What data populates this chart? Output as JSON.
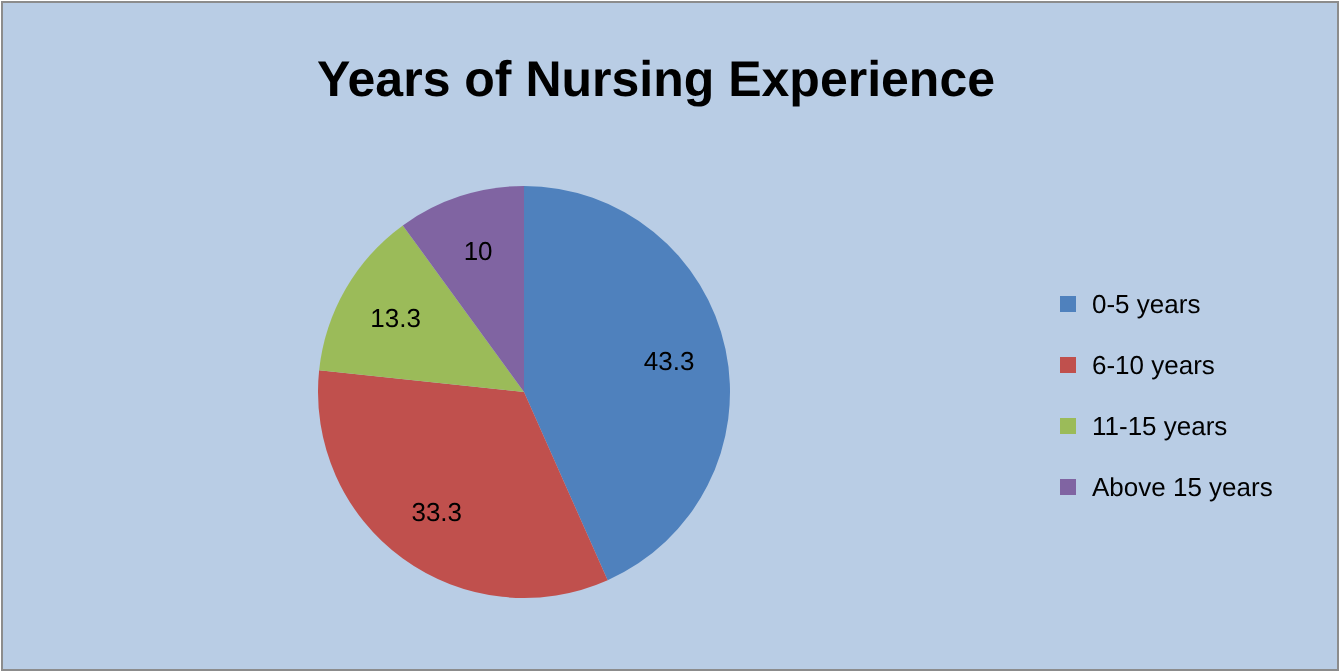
{
  "chart_data": {
    "type": "pie",
    "title": "Years of Nursing Experience",
    "categories": [
      "0-5 years",
      "6-10 years",
      "11-15 years",
      "Above 15 years"
    ],
    "values": [
      43.3,
      33.3,
      13.3,
      10
    ],
    "colors": [
      "#4f81bd",
      "#c0504d",
      "#9bbb59",
      "#8064a2"
    ],
    "data_labels": true,
    "legend": "right"
  }
}
